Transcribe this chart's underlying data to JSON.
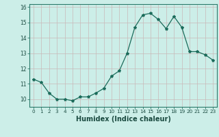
{
  "xlabel": "Humidex (Indice chaleur)",
  "ylabel": "",
  "x": [
    0,
    1,
    2,
    3,
    4,
    5,
    6,
    7,
    8,
    9,
    10,
    11,
    12,
    13,
    14,
    15,
    16,
    17,
    18,
    19,
    20,
    21,
    22,
    23
  ],
  "y": [
    11.3,
    11.1,
    10.4,
    10.0,
    10.0,
    9.9,
    10.15,
    10.15,
    10.4,
    10.7,
    11.5,
    11.85,
    13.0,
    14.7,
    15.5,
    15.6,
    15.2,
    14.6,
    15.4,
    14.7,
    13.1,
    13.1,
    12.9,
    12.55
  ],
  "line_color": "#1a6b5a",
  "marker": "*",
  "bg_color": "#cceee8",
  "grid_color": "#c8b8b8",
  "ylim": [
    9.5,
    16.2
  ],
  "xlim": [
    -0.5,
    23.5
  ],
  "yticks": [
    10,
    11,
    12,
    13,
    14,
    15,
    16
  ],
  "xticks": [
    0,
    1,
    2,
    3,
    4,
    5,
    6,
    7,
    8,
    9,
    10,
    11,
    12,
    13,
    14,
    15,
    16,
    17,
    18,
    19,
    20,
    21,
    22,
    23
  ]
}
